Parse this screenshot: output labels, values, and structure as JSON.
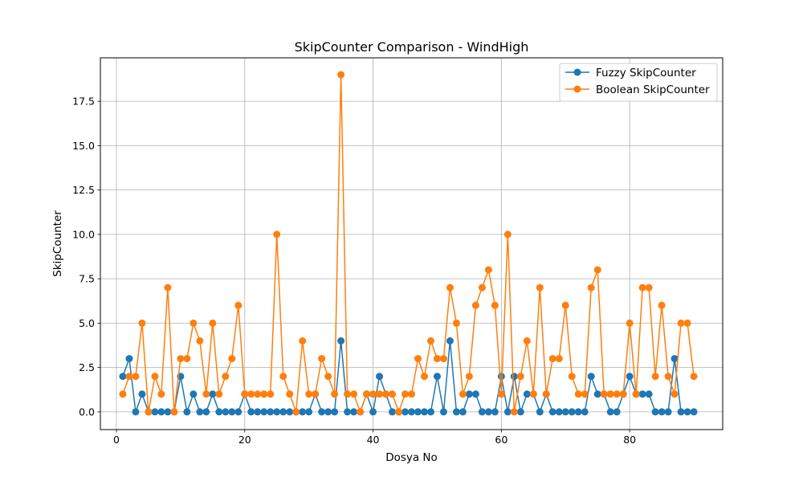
{
  "chart_data": {
    "type": "line",
    "title": "SkipCounter Comparison - WindHigh",
    "xlabel": "Dosya No",
    "ylabel": "SkipCounter",
    "xlim": [
      -2.5,
      94.5
    ],
    "ylim": [
      -1.0,
      19.95
    ],
    "xticks": [
      0,
      20,
      40,
      60,
      80
    ],
    "yticks": [
      0.0,
      2.5,
      5.0,
      7.5,
      10.0,
      12.5,
      15.0,
      17.5
    ],
    "xtick_labels": [
      "0",
      "20",
      "40",
      "60",
      "80"
    ],
    "ytick_labels": [
      "0.0",
      "2.5",
      "5.0",
      "7.5",
      "10.0",
      "12.5",
      "15.0",
      "17.5"
    ],
    "grid": true,
    "legend_position": "top-right",
    "x": [
      1,
      2,
      3,
      4,
      5,
      6,
      7,
      8,
      9,
      10,
      11,
      12,
      13,
      14,
      15,
      16,
      17,
      18,
      19,
      20,
      21,
      22,
      23,
      24,
      25,
      26,
      27,
      28,
      29,
      30,
      31,
      32,
      33,
      34,
      35,
      36,
      37,
      38,
      39,
      40,
      41,
      42,
      43,
      44,
      45,
      46,
      47,
      48,
      49,
      50,
      51,
      52,
      53,
      54,
      55,
      56,
      57,
      58,
      59,
      60,
      61,
      62,
      63,
      64,
      65,
      66,
      67,
      68,
      69,
      70,
      71,
      72,
      73,
      74,
      75,
      76,
      77,
      78,
      79,
      80,
      81,
      82,
      83,
      84,
      85,
      86,
      87,
      88,
      89,
      90
    ],
    "series": [
      {
        "name": "Fuzzy SkipCounter",
        "color": "#1f77b4",
        "values": [
          2,
          3,
          0,
          1,
          0,
          0,
          0,
          0,
          0,
          2,
          0,
          1,
          0,
          0,
          1,
          0,
          0,
          0,
          0,
          1,
          0,
          0,
          0,
          0,
          0,
          0,
          0,
          0,
          0,
          0,
          1,
          0,
          0,
          0,
          4,
          0,
          0,
          0,
          1,
          0,
          2,
          1,
          0,
          0,
          0,
          0,
          0,
          0,
          0,
          2,
          0,
          4,
          0,
          0,
          1,
          1,
          0,
          0,
          0,
          2,
          0,
          2,
          0,
          1,
          1,
          0,
          1,
          0,
          0,
          0,
          0,
          0,
          0,
          2,
          1,
          1,
          0,
          0,
          1,
          2,
          1,
          1,
          1,
          0,
          0,
          0,
          3,
          0,
          0,
          0
        ]
      },
      {
        "name": "Boolean SkipCounter",
        "color": "#ff7f0e",
        "values": [
          1,
          2,
          2,
          5,
          0,
          2,
          1,
          7,
          0,
          3,
          3,
          5,
          4,
          1,
          5,
          1,
          2,
          3,
          6,
          1,
          1,
          1,
          1,
          1,
          10,
          2,
          1,
          0,
          4,
          1,
          1,
          3,
          2,
          1,
          19,
          1,
          1,
          0,
          1,
          1,
          1,
          1,
          1,
          0,
          1,
          1,
          3,
          2,
          4,
          3,
          3,
          7,
          5,
          1,
          2,
          6,
          7,
          8,
          6,
          1,
          10,
          0,
          2,
          4,
          1,
          7,
          1,
          3,
          3,
          6,
          2,
          1,
          1,
          7,
          8,
          1,
          1,
          1,
          1,
          5,
          1,
          7,
          7,
          2,
          6,
          2,
          1,
          5,
          5,
          2
        ]
      }
    ]
  }
}
